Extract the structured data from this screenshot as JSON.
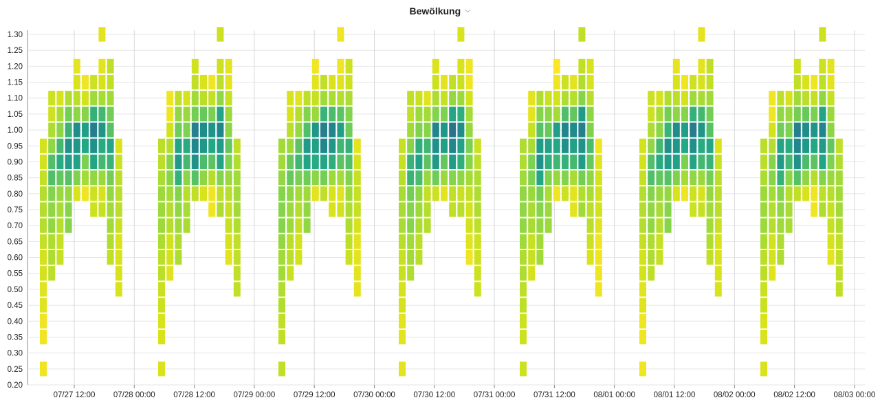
{
  "header": {
    "title": "Bewölkung",
    "dropdown_icon": "chevron-down-icon"
  },
  "chart_data": {
    "type": "heatmap",
    "title": "Bewölkung",
    "xlabel": "",
    "ylabel": "",
    "x_ticks": [
      "07/27 12:00",
      "07/28 00:00",
      "07/28 12:00",
      "07/29 00:00",
      "07/29 12:00",
      "07/30 00:00",
      "07/30 12:00",
      "07/31 00:00",
      "07/31 12:00",
      "08/01 00:00",
      "08/01 12:00",
      "08/02 00:00",
      "08/02 12:00",
      "08/03 00:00"
    ],
    "y_ticks": [
      "0.20",
      "0.25",
      "0.30",
      "0.35",
      "0.40",
      "0.45",
      "0.50",
      "0.55",
      "0.60",
      "0.65",
      "0.70",
      "0.75",
      "0.80",
      "0.85",
      "0.90",
      "0.95",
      "1.00",
      "1.05",
      "1.10",
      "1.15",
      "1.20",
      "1.25",
      "1.30"
    ],
    "ylim": [
      0.2,
      1.3
    ],
    "x_range_hours": [
      0,
      168
    ],
    "colorscale": "viridis",
    "grid": true,
    "cells_note": "rows: [hour offset from 07/27 06:00 start, [[y_value, intensity 0-1] ...]]",
    "columns": [
      [
        0,
        [
          [
            0.95,
            0.2
          ],
          [
            0.9,
            0.2
          ],
          [
            0.85,
            0.25
          ],
          [
            0.8,
            0.3
          ],
          [
            0.75,
            0.3
          ],
          [
            0.7,
            0.3
          ],
          [
            0.65,
            0.25
          ],
          [
            0.6,
            0.2
          ],
          [
            0.55,
            0.2
          ],
          [
            0.5,
            0.15
          ],
          [
            0.45,
            0.15
          ],
          [
            0.4,
            0.1
          ],
          [
            0.35,
            0.1
          ],
          [
            0.25,
            0.1
          ]
        ]
      ],
      [
        1,
        [
          [
            1.1,
            0.1
          ],
          [
            1.05,
            0.1
          ],
          [
            1.0,
            0.2
          ],
          [
            0.95,
            0.3
          ],
          [
            0.9,
            0.45
          ],
          [
            0.85,
            0.45
          ],
          [
            0.8,
            0.35
          ],
          [
            0.75,
            0.3
          ],
          [
            0.7,
            0.3
          ],
          [
            0.65,
            0.2
          ],
          [
            0.6,
            0.2
          ],
          [
            0.55,
            0.15
          ]
        ]
      ],
      [
        2,
        [
          [
            1.1,
            0.15
          ],
          [
            1.05,
            0.3
          ],
          [
            1.0,
            0.4
          ],
          [
            0.95,
            0.55
          ],
          [
            0.9,
            0.6
          ],
          [
            0.85,
            0.5
          ],
          [
            0.8,
            0.35
          ],
          [
            0.75,
            0.3
          ],
          [
            0.7,
            0.25
          ],
          [
            0.65,
            0.2
          ],
          [
            0.6,
            0.2
          ]
        ]
      ],
      [
        3,
        [
          [
            1.1,
            0.15
          ],
          [
            1.05,
            0.35
          ],
          [
            1.0,
            0.45
          ],
          [
            0.95,
            0.6
          ],
          [
            0.9,
            0.55
          ],
          [
            0.85,
            0.4
          ],
          [
            0.8,
            0.25
          ],
          [
            0.75,
            0.3
          ],
          [
            0.7,
            0.3
          ]
        ]
      ],
      [
        4,
        [
          [
            1.2,
            0.05
          ],
          [
            1.15,
            0.1
          ],
          [
            1.1,
            0.2
          ],
          [
            1.05,
            0.35
          ],
          [
            1.0,
            0.7
          ],
          [
            0.95,
            0.65
          ],
          [
            0.9,
            0.6
          ],
          [
            0.85,
            0.4
          ],
          [
            0.8,
            0.1
          ]
        ]
      ],
      [
        5,
        [
          [
            1.15,
            0.1
          ],
          [
            1.1,
            0.2
          ],
          [
            1.05,
            0.45
          ],
          [
            1.0,
            0.7
          ],
          [
            0.95,
            0.65
          ],
          [
            0.9,
            0.5
          ],
          [
            0.85,
            0.35
          ],
          [
            0.8,
            0.1
          ]
        ]
      ],
      [
        6,
        [
          [
            1.15,
            0.1
          ],
          [
            1.1,
            0.25
          ],
          [
            1.05,
            0.5
          ],
          [
            1.0,
            0.75
          ],
          [
            0.95,
            0.65
          ],
          [
            0.9,
            0.55
          ],
          [
            0.85,
            0.3
          ],
          [
            0.8,
            0.1
          ],
          [
            0.75,
            0.1
          ]
        ]
      ],
      [
        7,
        [
          [
            1.3,
            0.1
          ],
          [
            1.2,
            0.1
          ],
          [
            1.15,
            0.15
          ],
          [
            1.1,
            0.3
          ],
          [
            1.05,
            0.55
          ],
          [
            1.0,
            0.7
          ],
          [
            0.95,
            0.6
          ],
          [
            0.9,
            0.55
          ],
          [
            0.85,
            0.35
          ],
          [
            0.8,
            0.15
          ],
          [
            0.75,
            0.2
          ]
        ]
      ],
      [
        8,
        [
          [
            1.2,
            0.1
          ],
          [
            1.15,
            0.1
          ],
          [
            1.1,
            0.2
          ],
          [
            1.05,
            0.35
          ],
          [
            1.0,
            0.4
          ],
          [
            0.95,
            0.5
          ],
          [
            0.9,
            0.45
          ],
          [
            0.85,
            0.35
          ],
          [
            0.8,
            0.25
          ],
          [
            0.75,
            0.2
          ],
          [
            0.7,
            0.2
          ],
          [
            0.65,
            0.15
          ],
          [
            0.6,
            0.1
          ]
        ]
      ],
      [
        9,
        [
          [
            0.95,
            0.1
          ],
          [
            0.9,
            0.15
          ],
          [
            0.85,
            0.2
          ],
          [
            0.8,
            0.2
          ],
          [
            0.75,
            0.2
          ],
          [
            0.7,
            0.15
          ],
          [
            0.65,
            0.1
          ],
          [
            0.6,
            0.1
          ],
          [
            0.55,
            0.1
          ],
          [
            0.5,
            0.1
          ]
        ]
      ]
    ]
  }
}
